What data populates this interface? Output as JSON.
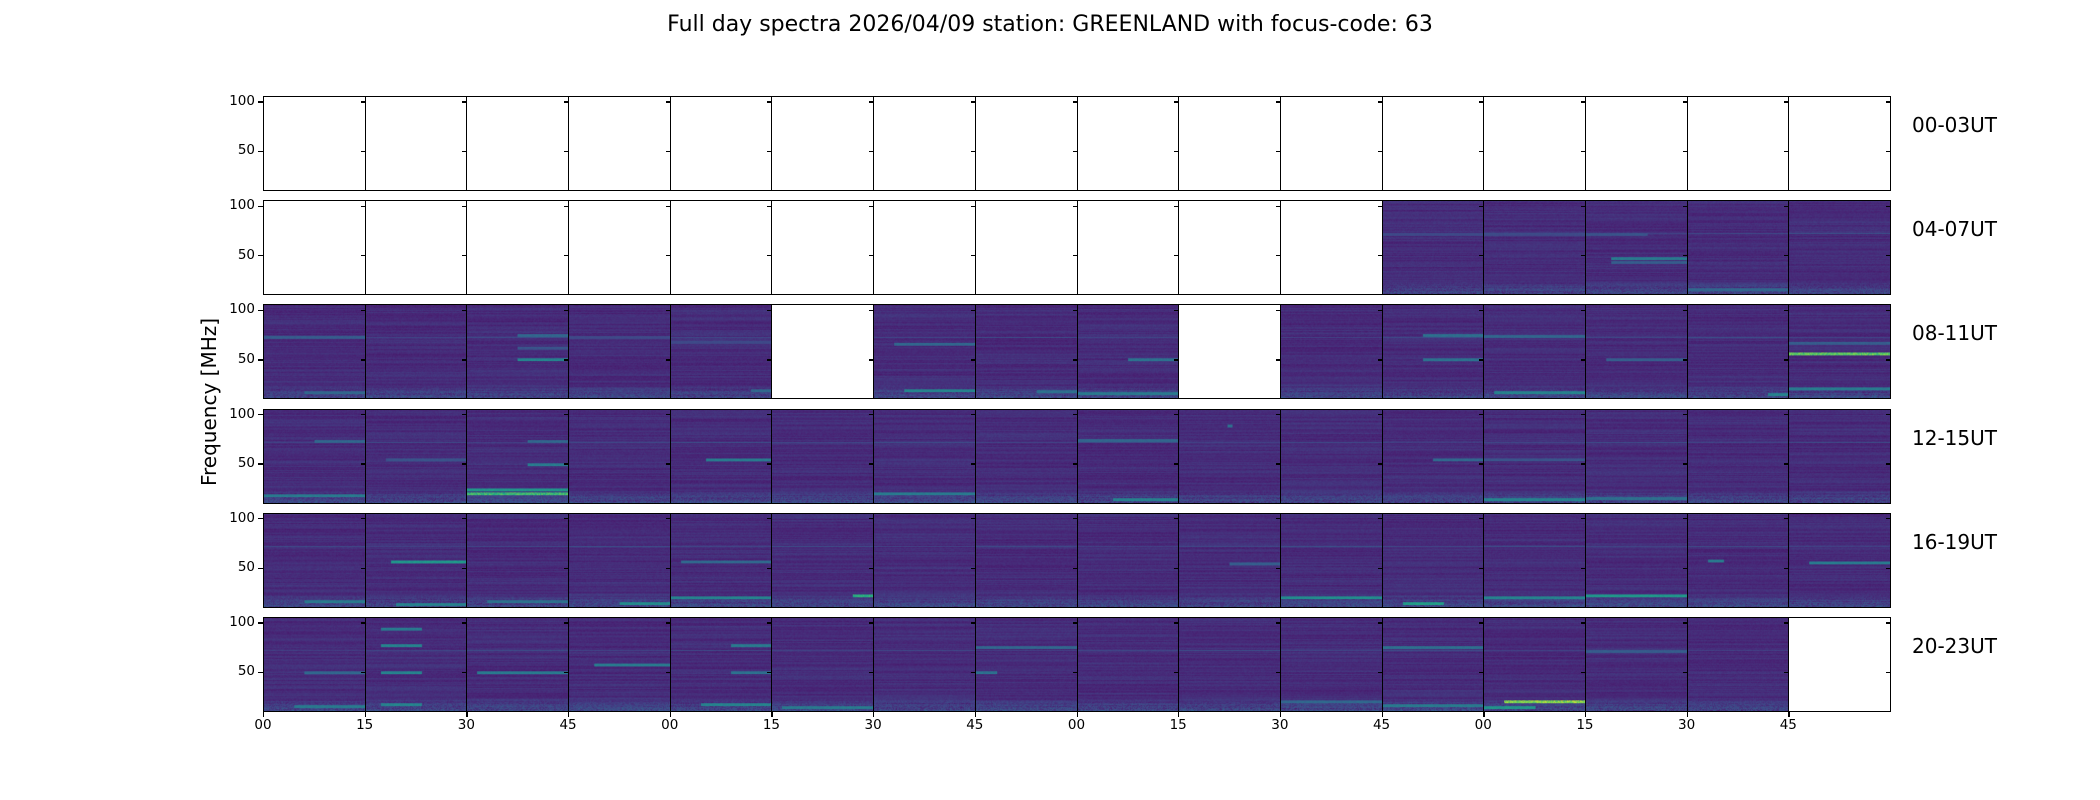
{
  "chart_data": {
    "type": "heatmap",
    "title": "Full day spectra 2026/04/09 station: GREENLAND with focus-code: 63",
    "ylabel": "Frequency [MHz]",
    "xlabel": "",
    "ylim": [
      10,
      106
    ],
    "yticks": [
      50,
      100
    ],
    "ytick_labels": [
      "50",
      "100"
    ],
    "xtick_labels": [
      "00",
      "15",
      "30",
      "45",
      "00",
      "15",
      "30",
      "45",
      "00",
      "15",
      "30",
      "45",
      "00",
      "15",
      "30",
      "45"
    ],
    "colormap": "viridis",
    "colors": {
      "low": "#471365",
      "mid": "#2a788e",
      "high": "#b5de2b",
      "empty": "#ffffff"
    },
    "panel_minutes": 15,
    "rows": [
      {
        "label": "00-03UT",
        "panels": [
          0,
          0,
          0,
          0,
          0,
          0,
          0,
          0,
          0,
          0,
          0,
          0,
          0,
          0,
          0,
          0
        ],
        "features": []
      },
      {
        "label": "04-07UT",
        "panels": [
          0,
          0,
          0,
          0,
          0,
          0,
          0,
          0,
          0,
          0,
          0,
          1,
          1,
          1,
          1,
          1
        ],
        "features": [
          {
            "panel": 11,
            "freq": 72,
            "intensity": 0.3,
            "from": 0,
            "to": 1
          },
          {
            "panel": 12,
            "freq": 72,
            "intensity": 0.3,
            "from": 0,
            "to": 1
          },
          {
            "panel": 13,
            "freq": 47,
            "intensity": 0.55,
            "from": 0.25,
            "to": 1
          },
          {
            "panel": 13,
            "freq": 43,
            "intensity": 0.4,
            "from": 0.25,
            "to": 1
          },
          {
            "panel": 13,
            "freq": 72,
            "intensity": 0.35,
            "from": 0,
            "to": 0.6
          },
          {
            "panel": 14,
            "freq": 15,
            "intensity": 0.45,
            "from": 0,
            "to": 1
          }
        ]
      },
      {
        "label": "08-11UT",
        "panels": [
          1,
          1,
          1,
          1,
          1,
          0,
          1,
          1,
          1,
          0,
          1,
          1,
          1,
          1,
          1,
          1
        ],
        "features": [
          {
            "panel": 0,
            "freq": 73,
            "intensity": 0.4,
            "from": 0,
            "to": 1
          },
          {
            "panel": 0,
            "freq": 16,
            "intensity": 0.45,
            "from": 0.4,
            "to": 1
          },
          {
            "panel": 2,
            "freq": 75,
            "intensity": 0.45,
            "from": 0.5,
            "to": 1
          },
          {
            "panel": 2,
            "freq": 50,
            "intensity": 0.6,
            "from": 0.5,
            "to": 1
          },
          {
            "panel": 2,
            "freq": 62,
            "intensity": 0.35,
            "from": 0.5,
            "to": 1
          },
          {
            "panel": 3,
            "freq": 73,
            "intensity": 0.3,
            "from": 0,
            "to": 1
          },
          {
            "panel": 4,
            "freq": 68,
            "intensity": 0.3,
            "from": 0,
            "to": 1
          },
          {
            "panel": 4,
            "freq": 18,
            "intensity": 0.45,
            "from": 0.8,
            "to": 1
          },
          {
            "panel": 6,
            "freq": 66,
            "intensity": 0.45,
            "from": 0.2,
            "to": 1
          },
          {
            "panel": 6,
            "freq": 18,
            "intensity": 0.6,
            "from": 0.3,
            "to": 1
          },
          {
            "panel": 7,
            "freq": 17,
            "intensity": 0.5,
            "from": 0.6,
            "to": 1
          },
          {
            "panel": 8,
            "freq": 50,
            "intensity": 0.5,
            "from": 0.5,
            "to": 1
          },
          {
            "panel": 8,
            "freq": 15,
            "intensity": 0.55,
            "from": 0,
            "to": 1
          },
          {
            "panel": 11,
            "freq": 75,
            "intensity": 0.5,
            "from": 0.4,
            "to": 1
          },
          {
            "panel": 11,
            "freq": 50,
            "intensity": 0.5,
            "from": 0.4,
            "to": 1
          },
          {
            "panel": 12,
            "freq": 74,
            "intensity": 0.45,
            "from": 0,
            "to": 1
          },
          {
            "panel": 12,
            "freq": 16,
            "intensity": 0.6,
            "from": 0.1,
            "to": 1
          },
          {
            "panel": 13,
            "freq": 50,
            "intensity": 0.4,
            "from": 0.2,
            "to": 1
          },
          {
            "panel": 14,
            "freq": 14,
            "intensity": 0.6,
            "from": 0.8,
            "to": 1
          },
          {
            "panel": 15,
            "freq": 56,
            "intensity": 0.9,
            "from": 0,
            "to": 1
          },
          {
            "panel": 15,
            "freq": 67,
            "intensity": 0.4,
            "from": 0,
            "to": 1
          },
          {
            "panel": 15,
            "freq": 20,
            "intensity": 0.55,
            "from": 0,
            "to": 1
          }
        ]
      },
      {
        "label": "12-15UT",
        "panels": [
          1,
          1,
          1,
          1,
          1,
          1,
          1,
          1,
          1,
          1,
          1,
          1,
          1,
          1,
          1,
          1
        ],
        "features": [
          {
            "panel": 0,
            "freq": 74,
            "intensity": 0.45,
            "from": 0.5,
            "to": 1
          },
          {
            "panel": 0,
            "freq": 18,
            "intensity": 0.55,
            "from": 0,
            "to": 1
          },
          {
            "panel": 1,
            "freq": 55,
            "intensity": 0.35,
            "from": 0.2,
            "to": 1
          },
          {
            "panel": 2,
            "freq": 50,
            "intensity": 0.55,
            "from": 0.6,
            "to": 1
          },
          {
            "panel": 2,
            "freq": 74,
            "intensity": 0.45,
            "from": 0.6,
            "to": 1
          },
          {
            "panel": 2,
            "freq": 20,
            "intensity": 0.85,
            "from": 0,
            "to": 1
          },
          {
            "panel": 2,
            "freq": 24,
            "intensity": 0.7,
            "from": 0,
            "to": 1
          },
          {
            "panel": 4,
            "freq": 55,
            "intensity": 0.55,
            "from": 0.35,
            "to": 1
          },
          {
            "panel": 6,
            "freq": 20,
            "intensity": 0.55,
            "from": 0,
            "to": 1
          },
          {
            "panel": 8,
            "freq": 75,
            "intensity": 0.45,
            "from": 0,
            "to": 1
          },
          {
            "panel": 8,
            "freq": 14,
            "intensity": 0.6,
            "from": 0.35,
            "to": 1
          },
          {
            "panel": 9,
            "freq": 90,
            "intensity": 0.5,
            "from": 0.48,
            "to": 0.52
          },
          {
            "panel": 11,
            "freq": 55,
            "intensity": 0.45,
            "from": 0.5,
            "to": 1
          },
          {
            "panel": 12,
            "freq": 55,
            "intensity": 0.35,
            "from": 0,
            "to": 1
          },
          {
            "panel": 12,
            "freq": 14,
            "intensity": 0.6,
            "from": 0,
            "to": 1
          },
          {
            "panel": 13,
            "freq": 15,
            "intensity": 0.5,
            "from": 0,
            "to": 1
          }
        ]
      },
      {
        "label": "16-19UT",
        "panels": [
          1,
          1,
          1,
          1,
          1,
          1,
          1,
          1,
          1,
          1,
          1,
          1,
          1,
          1,
          1,
          1
        ],
        "features": [
          {
            "panel": 0,
            "freq": 16,
            "intensity": 0.55,
            "from": 0.4,
            "to": 1
          },
          {
            "panel": 1,
            "freq": 57,
            "intensity": 0.7,
            "from": 0.25,
            "to": 1
          },
          {
            "panel": 1,
            "freq": 13,
            "intensity": 0.6,
            "from": 0.3,
            "to": 1
          },
          {
            "panel": 2,
            "freq": 16,
            "intensity": 0.5,
            "from": 0.2,
            "to": 1
          },
          {
            "panel": 3,
            "freq": 14,
            "intensity": 0.65,
            "from": 0.5,
            "to": 1
          },
          {
            "panel": 4,
            "freq": 20,
            "intensity": 0.6,
            "from": 0,
            "to": 1
          },
          {
            "panel": 4,
            "freq": 57,
            "intensity": 0.45,
            "from": 0.1,
            "to": 1
          },
          {
            "panel": 5,
            "freq": 22,
            "intensity": 0.8,
            "from": 0.8,
            "to": 1
          },
          {
            "panel": 9,
            "freq": 55,
            "intensity": 0.4,
            "from": 0.5,
            "to": 1
          },
          {
            "panel": 10,
            "freq": 20,
            "intensity": 0.65,
            "from": 0,
            "to": 1
          },
          {
            "panel": 11,
            "freq": 14,
            "intensity": 0.75,
            "from": 0.2,
            "to": 0.6
          },
          {
            "panel": 12,
            "freq": 20,
            "intensity": 0.6,
            "from": 0,
            "to": 1
          },
          {
            "panel": 13,
            "freq": 22,
            "intensity": 0.7,
            "from": 0,
            "to": 1
          },
          {
            "panel": 14,
            "freq": 58,
            "intensity": 0.55,
            "from": 0.2,
            "to": 0.35
          },
          {
            "panel": 15,
            "freq": 56,
            "intensity": 0.55,
            "from": 0.2,
            "to": 1
          }
        ]
      },
      {
        "label": "20-23UT",
        "panels": [
          1,
          1,
          1,
          1,
          1,
          1,
          1,
          1,
          1,
          1,
          1,
          1,
          1,
          1,
          1,
          0
        ],
        "features": [
          {
            "panel": 0,
            "freq": 50,
            "intensity": 0.45,
            "from": 0.4,
            "to": 1
          },
          {
            "panel": 0,
            "freq": 15,
            "intensity": 0.55,
            "from": 0.3,
            "to": 1
          },
          {
            "panel": 1,
            "freq": 95,
            "intensity": 0.55,
            "from": 0.15,
            "to": 0.55
          },
          {
            "panel": 1,
            "freq": 78,
            "intensity": 0.6,
            "from": 0.15,
            "to": 0.55
          },
          {
            "panel": 1,
            "freq": 50,
            "intensity": 0.6,
            "from": 0.15,
            "to": 0.55
          },
          {
            "panel": 1,
            "freq": 17,
            "intensity": 0.6,
            "from": 0.15,
            "to": 0.55
          },
          {
            "panel": 2,
            "freq": 50,
            "intensity": 0.55,
            "from": 0.1,
            "to": 1
          },
          {
            "panel": 3,
            "freq": 58,
            "intensity": 0.55,
            "from": 0.25,
            "to": 1
          },
          {
            "panel": 4,
            "freq": 78,
            "intensity": 0.55,
            "from": 0.6,
            "to": 1
          },
          {
            "panel": 4,
            "freq": 50,
            "intensity": 0.5,
            "from": 0.6,
            "to": 1
          },
          {
            "panel": 4,
            "freq": 17,
            "intensity": 0.6,
            "from": 0.3,
            "to": 1
          },
          {
            "panel": 5,
            "freq": 14,
            "intensity": 0.55,
            "from": 0.1,
            "to": 1
          },
          {
            "panel": 7,
            "freq": 50,
            "intensity": 0.5,
            "from": 0,
            "to": 0.2
          },
          {
            "panel": 7,
            "freq": 76,
            "intensity": 0.45,
            "from": 0,
            "to": 1
          },
          {
            "panel": 10,
            "freq": 20,
            "intensity": 0.45,
            "from": 0,
            "to": 1
          },
          {
            "panel": 11,
            "freq": 76,
            "intensity": 0.5,
            "from": 0,
            "to": 1
          },
          {
            "panel": 11,
            "freq": 16,
            "intensity": 0.55,
            "from": 0,
            "to": 1
          },
          {
            "panel": 12,
            "freq": 20,
            "intensity": 0.95,
            "from": 0.2,
            "to": 1
          },
          {
            "panel": 12,
            "freq": 14,
            "intensity": 0.7,
            "from": 0,
            "to": 0.5
          },
          {
            "panel": 13,
            "freq": 72,
            "intensity": 0.4,
            "from": 0,
            "to": 1
          }
        ]
      }
    ]
  }
}
